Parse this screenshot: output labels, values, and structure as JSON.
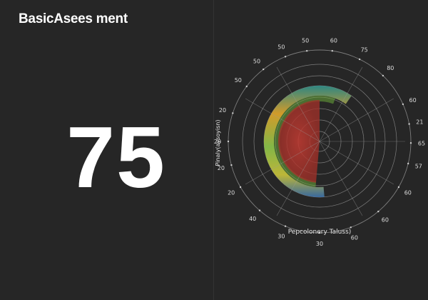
{
  "header": {
    "title": "BasicAsees ment"
  },
  "score": {
    "value": "75"
  },
  "colors": {
    "background": "#262626",
    "ring": "#9a9a9a",
    "gradient": [
      "#c23b32",
      "#e87a2a",
      "#d6c43a",
      "#8bc34a",
      "#3fa7b5",
      "#3b5fa0"
    ]
  },
  "chart_data": {
    "type": "polar",
    "xlabel": "Pepcolonery Taluss)",
    "ylabel": "Pinaly(aysoyisn)",
    "ticks": [
      {
        "label": "60",
        "angle": -82
      },
      {
        "label": "75",
        "angle": -64
      },
      {
        "label": "80",
        "angle": -46
      },
      {
        "label": "60",
        "angle": -24
      },
      {
        "label": "21",
        "angle": -11
      },
      {
        "label": "65",
        "angle": 1
      },
      {
        "label": "57",
        "angle": 14
      },
      {
        "label": "60",
        "angle": 30
      },
      {
        "label": "60",
        "angle": 50
      },
      {
        "label": "60",
        "angle": 70
      },
      {
        "label": "30",
        "angle": 90
      },
      {
        "label": "30",
        "angle": 112
      },
      {
        "label": "40",
        "angle": 131
      },
      {
        "label": "20",
        "angle": 150
      },
      {
        "label": "20",
        "angle": 165
      },
      {
        "label": "20",
        "angle": 180
      },
      {
        "label": "20",
        "angle": 198
      },
      {
        "label": "50",
        "angle": 217
      },
      {
        "label": "50",
        "angle": 232
      },
      {
        "label": "50",
        "angle": 248
      },
      {
        "label": "50",
        "angle": 262
      }
    ],
    "highlight_sector": {
      "start_angle": -110,
      "end_angle": 95
    },
    "band": {
      "start_angle": 85,
      "end_angle": 305
    }
  }
}
